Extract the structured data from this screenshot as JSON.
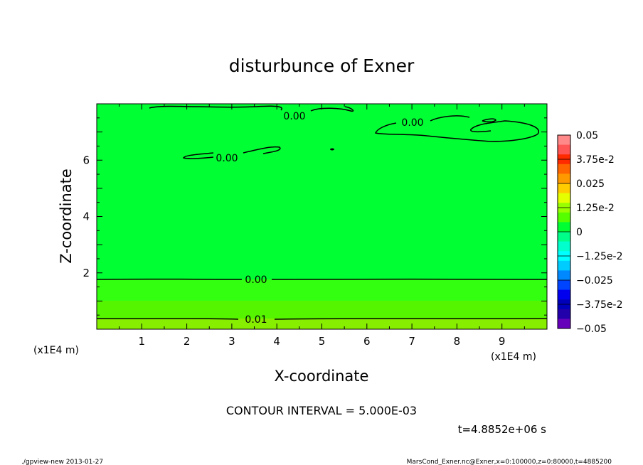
{
  "chart_data": {
    "type": "contour",
    "title": "disturbunce of Exner",
    "xlabel": "X-coordinate",
    "ylabel": "Z-coordinate",
    "x_unit": "(x1E4 m)",
    "y_unit": "(x1E4 m)",
    "xlim": [
      0,
      10
    ],
    "ylim": [
      0,
      8
    ],
    "x_ticks": [
      "1",
      "2",
      "3",
      "4",
      "5",
      "6",
      "7",
      "8",
      "9"
    ],
    "y_ticks": [
      "2",
      "4",
      "6"
    ],
    "contour_labels": [
      "0.00",
      "0.00",
      "0.00",
      "0.00",
      "0.01"
    ],
    "colorbar": {
      "labels": [
        "0.05",
        "3.75e-2",
        "0.025",
        "1.25e-2",
        "0",
        "−1.25e-2",
        "−0.025",
        "−3.75e-2",
        "−0.05"
      ],
      "range": [
        -0.05,
        0.05
      ]
    },
    "levels": [
      {
        "z_top": 1.9,
        "color": "#00ff33"
      },
      {
        "z_top": 1.1,
        "color": "#33ff11"
      },
      {
        "z_top": 0.4,
        "color": "#66ee00"
      },
      {
        "z_top": 0.0,
        "color": "#88ee00"
      }
    ],
    "contour_interval_text": "CONTOUR INTERVAL = 5.000E-03",
    "time_text": "t=4.8852e+06 s",
    "footer_left": "./gpview-new  2013-01-27",
    "footer_right": "MarsCond_Exner.nc@Exner,x=0:100000,z=0:80000,t=4885200"
  }
}
